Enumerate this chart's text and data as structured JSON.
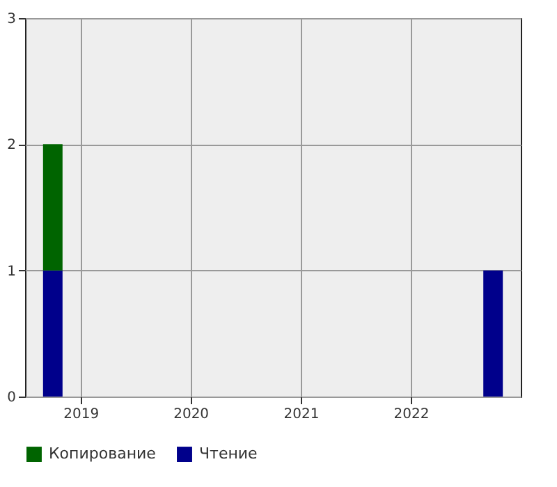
{
  "chart_data": {
    "type": "bar",
    "stacked": true,
    "x": [
      "2018-10",
      "2022-10"
    ],
    "series": [
      {
        "name": "Чтение",
        "color": "#00008b",
        "values": [
          1,
          1
        ]
      },
      {
        "name": "Копирование",
        "color": "#006400",
        "values": [
          1,
          null
        ]
      }
    ],
    "xlim": [
      "2018-07",
      "2023-01"
    ],
    "xticks": [
      "2019",
      "2020",
      "2021",
      "2022"
    ],
    "ylim": [
      0,
      3
    ],
    "yticks": [
      0,
      1,
      2,
      3
    ],
    "grid": true,
    "legend": "bottom"
  }
}
